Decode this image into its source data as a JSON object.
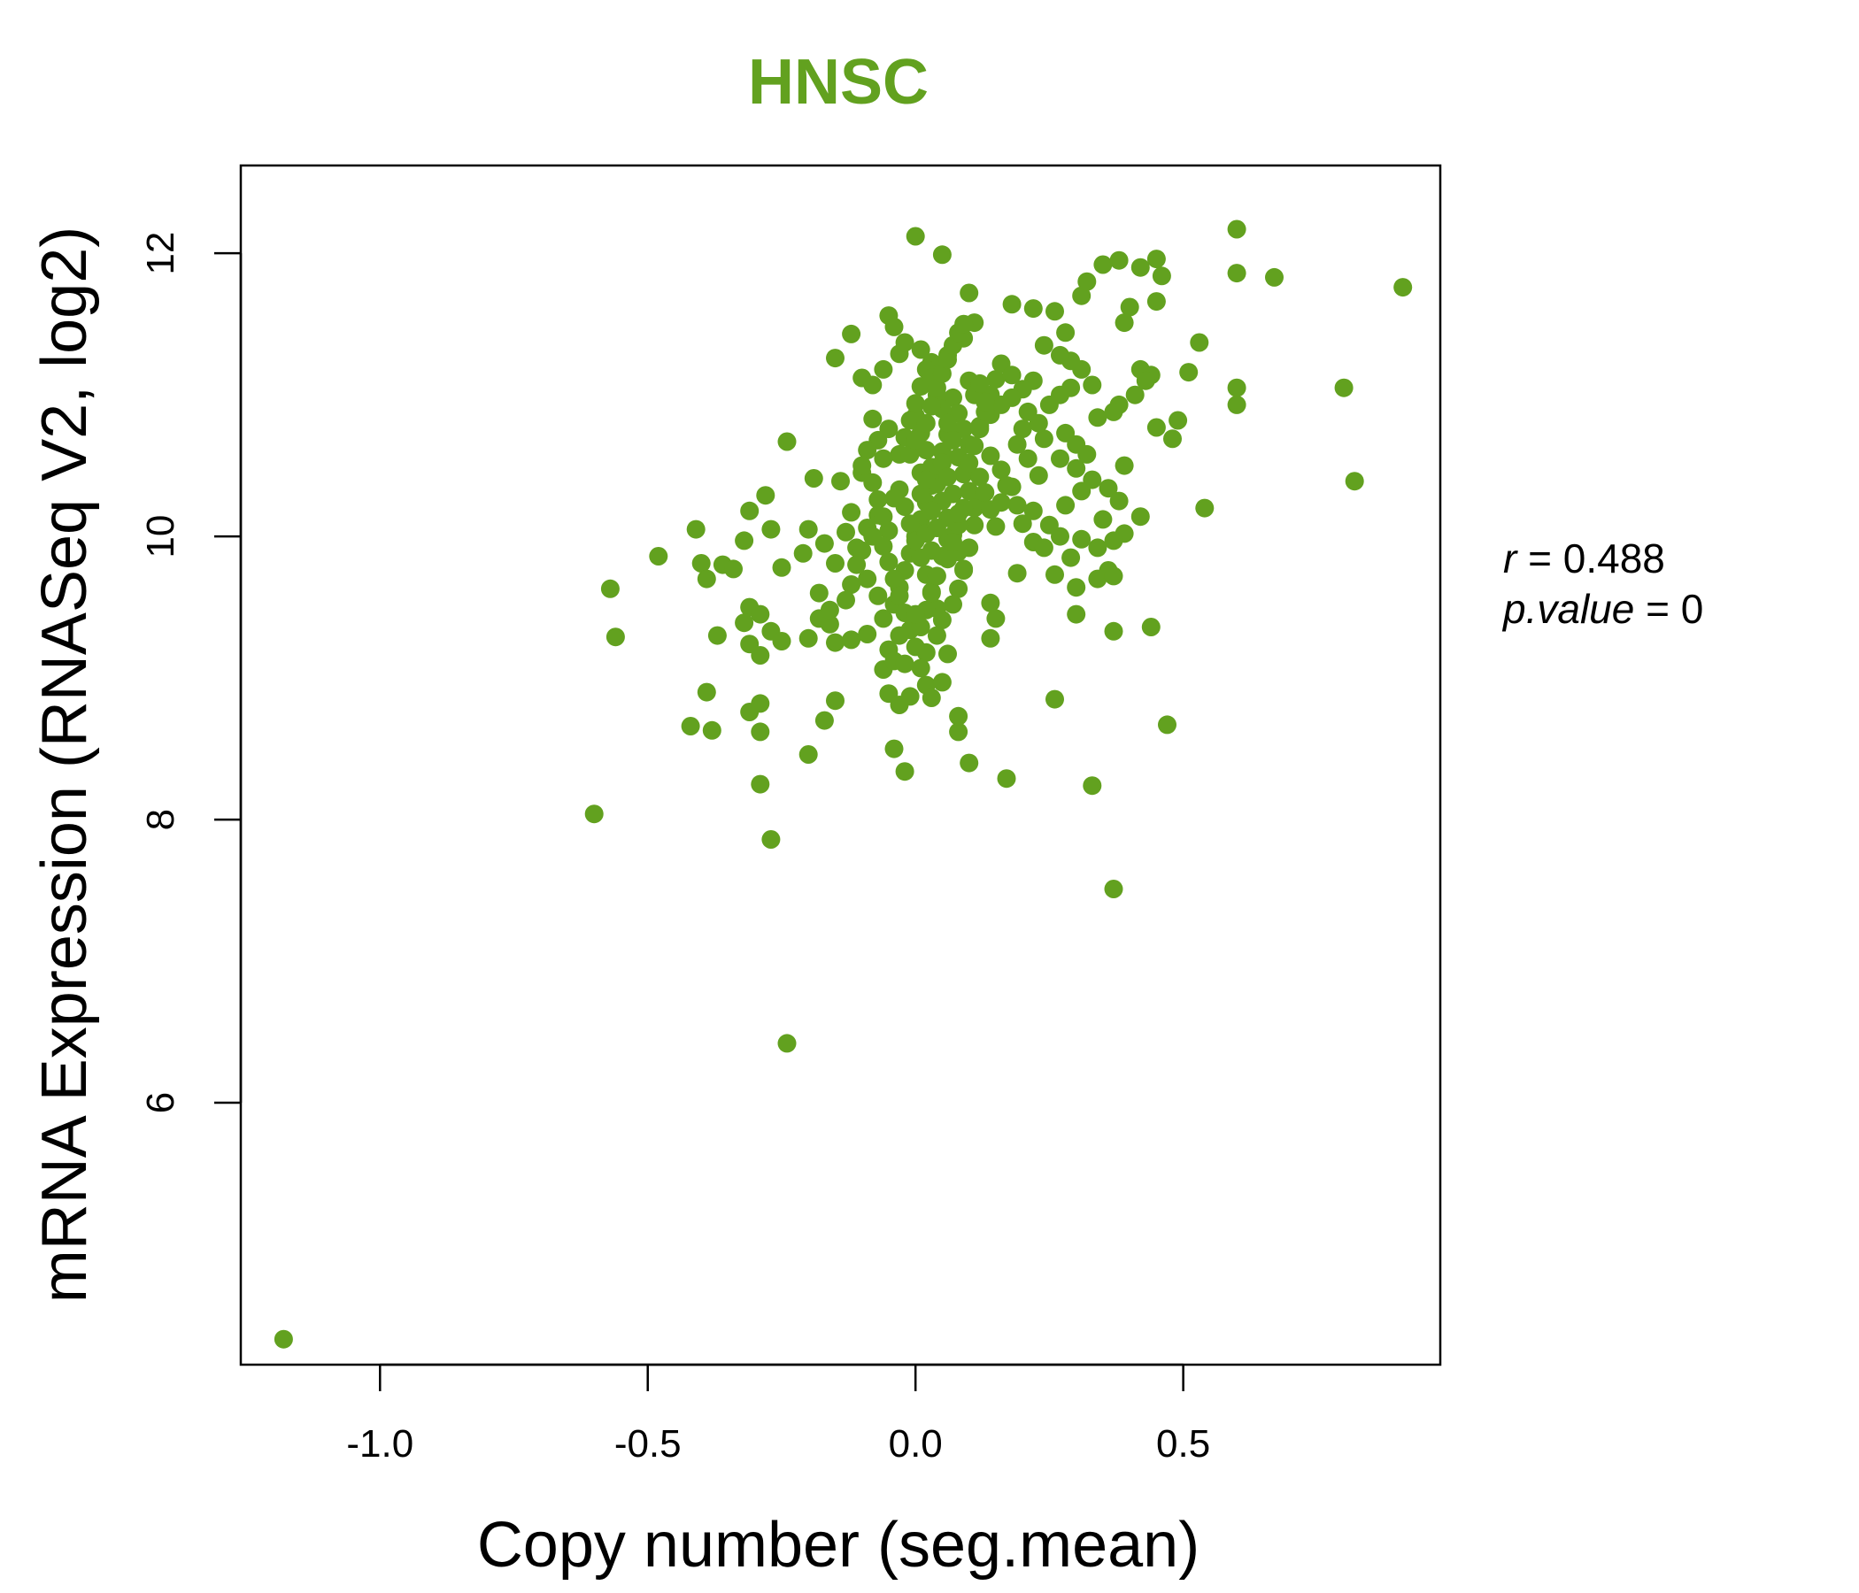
{
  "colors": {
    "accent": "#62A11F",
    "axis": "#000000",
    "background": "#FFFFFF"
  },
  "chart_data": {
    "type": "scatter",
    "title": "HNSC",
    "xlabel": "Copy number (seg.mean)",
    "ylabel": "mRNA Expression (RNASeq V2, log2)",
    "xlim": [
      -1.26,
      0.98
    ],
    "ylim": [
      4.15,
      12.62
    ],
    "xticks": [
      -1.0,
      -0.5,
      0.0,
      0.5
    ],
    "xtick_labels": [
      "-1.0",
      "-0.5",
      "0.0",
      "0.5"
    ],
    "yticks": [
      6,
      8,
      10,
      12
    ],
    "ytick_labels": [
      "6",
      "8",
      "10",
      "12"
    ],
    "grid": false,
    "stats": {
      "r_symbol": "r",
      "r_value": "0.488",
      "p_symbol": "p.value",
      "p_value": "0"
    },
    "points": [
      [
        -1.18,
        4.33
      ],
      [
        -0.6,
        8.04
      ],
      [
        -0.24,
        6.42
      ],
      [
        0.37,
        7.51
      ],
      [
        0.33,
        8.24
      ],
      [
        -0.29,
        8.25
      ],
      [
        -0.27,
        7.86
      ],
      [
        -0.2,
        8.46
      ],
      [
        -0.42,
        8.66
      ],
      [
        -0.38,
        8.63
      ],
      [
        -0.29,
        8.62
      ],
      [
        -0.31,
        8.76
      ],
      [
        -0.29,
        8.82
      ],
      [
        -0.17,
        8.7
      ],
      [
        -0.15,
        8.84
      ],
      [
        -0.04,
        8.5
      ],
      [
        -0.02,
        8.34
      ],
      [
        0.08,
        8.62
      ],
      [
        0.08,
        8.73
      ],
      [
        0.1,
        8.4
      ],
      [
        0.17,
        8.29
      ],
      [
        0.26,
        8.85
      ],
      [
        0.47,
        8.67
      ],
      [
        0.44,
        9.36
      ],
      [
        0.37,
        9.33
      ],
      [
        -0.57,
        9.63
      ],
      [
        -0.56,
        9.29
      ],
      [
        -0.48,
        9.86
      ],
      [
        -0.41,
        10.05
      ],
      [
        -0.4,
        9.81
      ],
      [
        -0.39,
        9.7
      ],
      [
        -0.36,
        9.8
      ],
      [
        -0.34,
        9.77
      ],
      [
        -0.32,
        9.97
      ],
      [
        -0.31,
        10.18
      ],
      [
        -0.28,
        10.29
      ],
      [
        -0.27,
        10.05
      ],
      [
        -0.25,
        9.78
      ],
      [
        -0.24,
        10.67
      ],
      [
        -0.21,
        9.88
      ],
      [
        -0.2,
        10.05
      ],
      [
        -0.19,
        10.41
      ],
      [
        -0.17,
        9.95
      ],
      [
        -0.15,
        9.81
      ],
      [
        -0.14,
        10.39
      ],
      [
        -0.13,
        10.03
      ],
      [
        -0.12,
        10.17
      ],
      [
        -0.11,
        9.92
      ],
      [
        -0.1,
        10.45
      ],
      [
        -0.09,
        10.06
      ],
      [
        -0.31,
        9.5
      ],
      [
        -0.29,
        9.45
      ],
      [
        -0.27,
        9.33
      ],
      [
        -0.25,
        9.26
      ],
      [
        -0.32,
        9.39
      ],
      [
        -0.31,
        9.24
      ],
      [
        -0.29,
        9.16
      ],
      [
        -0.37,
        9.3
      ],
      [
        -0.39,
        8.9
      ],
      [
        -0.2,
        9.28
      ],
      [
        -0.18,
        9.42
      ],
      [
        -0.16,
        9.38
      ],
      [
        -0.15,
        9.25
      ],
      [
        -0.12,
        9.27
      ],
      [
        -0.09,
        9.31
      ],
      [
        -0.06,
        9.06
      ],
      [
        -0.05,
        8.89
      ],
      [
        -0.03,
        8.81
      ],
      [
        -0.01,
        8.87
      ],
      [
        0.02,
        8.95
      ],
      [
        0.05,
        8.97
      ],
      [
        0.06,
        9.17
      ],
      [
        0.03,
        8.86
      ],
      [
        -0.15,
        11.26
      ],
      [
        -0.12,
        11.43
      ],
      [
        -0.1,
        11.12
      ],
      [
        -0.08,
        11.07
      ],
      [
        -0.06,
        11.18
      ],
      [
        -0.05,
        11.56
      ],
      [
        -0.04,
        11.48
      ],
      [
        -0.03,
        11.29
      ],
      [
        -0.02,
        11.37
      ],
      [
        0.0,
        12.12
      ],
      [
        0.05,
        11.99
      ],
      [
        0.1,
        11.72
      ],
      [
        0.11,
        11.51
      ],
      [
        0.09,
        11.4
      ],
      [
        0.06,
        11.28
      ],
      [
        0.03,
        11.23
      ],
      [
        0.01,
        11.32
      ],
      [
        0.18,
        11.64
      ],
      [
        0.22,
        11.61
      ],
      [
        0.26,
        11.59
      ],
      [
        0.28,
        11.44
      ],
      [
        0.31,
        11.7
      ],
      [
        0.32,
        11.8
      ],
      [
        0.35,
        11.92
      ],
      [
        0.38,
        11.95
      ],
      [
        0.42,
        11.9
      ],
      [
        0.45,
        11.96
      ],
      [
        0.46,
        11.84
      ],
      [
        0.45,
        11.66
      ],
      [
        0.4,
        11.62
      ],
      [
        0.39,
        11.51
      ],
      [
        0.6,
        12.17
      ],
      [
        0.6,
        11.86
      ],
      [
        0.67,
        11.83
      ],
      [
        0.91,
        11.76
      ],
      [
        0.53,
        11.37
      ],
      [
        0.51,
        11.16
      ],
      [
        0.6,
        11.05
      ],
      [
        0.6,
        10.93
      ],
      [
        0.8,
        11.05
      ],
      [
        0.82,
        10.39
      ],
      [
        0.54,
        10.2
      ],
      [
        0.49,
        10.82
      ],
      [
        0.48,
        10.69
      ],
      [
        0.45,
        10.77
      ],
      [
        0.42,
        11.18
      ],
      [
        0.44,
        11.14
      ],
      [
        0.43,
        11.1
      ],
      [
        0.41,
        11.0
      ],
      [
        0.38,
        10.93
      ],
      [
        0.37,
        10.88
      ],
      [
        0.34,
        10.84
      ],
      [
        0.33,
        11.07
      ],
      [
        0.31,
        11.18
      ],
      [
        0.29,
        11.24
      ],
      [
        0.27,
        11.28
      ],
      [
        0.24,
        11.35
      ],
      [
        0.22,
        11.1
      ],
      [
        0.2,
        11.04
      ],
      [
        0.18,
        10.98
      ],
      [
        0.16,
        10.93
      ],
      [
        0.14,
        10.86
      ],
      [
        0.12,
        10.78
      ],
      [
        0.24,
        10.69
      ],
      [
        0.27,
        10.55
      ],
      [
        0.3,
        10.48
      ],
      [
        0.33,
        10.4
      ],
      [
        0.36,
        10.34
      ],
      [
        0.38,
        10.25
      ],
      [
        0.42,
        10.14
      ],
      [
        0.39,
        10.02
      ],
      [
        0.37,
        9.97
      ],
      [
        0.34,
        9.92
      ],
      [
        0.31,
        9.98
      ],
      [
        0.29,
        9.85
      ],
      [
        0.26,
        9.73
      ],
      [
        0.22,
        9.96
      ],
      [
        0.2,
        10.09
      ],
      [
        0.19,
        10.22
      ],
      [
        0.18,
        10.35
      ],
      [
        0.16,
        10.47
      ],
      [
        0.14,
        10.57
      ],
      [
        0.12,
        10.24
      ],
      [
        0.11,
        10.08
      ],
      [
        0.1,
        9.92
      ],
      [
        0.09,
        9.76
      ],
      [
        0.08,
        9.63
      ],
      [
        0.07,
        9.52
      ],
      [
        0.05,
        9.41
      ],
      [
        0.04,
        9.3
      ],
      [
        0.02,
        9.18
      ],
      [
        0.01,
        9.07
      ],
      [
        0.14,
        9.53
      ],
      [
        0.15,
        9.42
      ],
      [
        0.14,
        9.28
      ],
      [
        0.19,
        9.74
      ],
      [
        0.24,
        9.92
      ],
      [
        0.3,
        9.45
      ],
      [
        0.34,
        9.7
      ],
      [
        0.36,
        9.76
      ],
      [
        0.37,
        9.72
      ],
      [
        0.3,
        9.64
      ],
      [
        0.07,
        10.98
      ],
      [
        0.08,
        10.87
      ],
      [
        0.09,
        10.76
      ],
      [
        0.1,
        10.65
      ],
      [
        0.06,
        10.72
      ],
      [
        0.05,
        10.6
      ],
      [
        0.04,
        10.48
      ],
      [
        0.03,
        10.36
      ],
      [
        0.02,
        10.24
      ],
      [
        0.01,
        10.12
      ],
      [
        0.0,
        10.0
      ],
      [
        -0.01,
        9.88
      ],
      [
        -0.02,
        9.76
      ],
      [
        -0.03,
        9.64
      ],
      [
        -0.04,
        9.52
      ],
      [
        0.0,
        10.85
      ],
      [
        0.01,
        10.73
      ],
      [
        0.02,
        10.61
      ],
      [
        0.03,
        10.49
      ],
      [
        0.04,
        10.37
      ],
      [
        0.05,
        10.25
      ],
      [
        0.06,
        10.13
      ],
      [
        0.07,
        10.01
      ],
      [
        0.08,
        9.89
      ],
      [
        0.09,
        9.77
      ],
      [
        -0.03,
        10.33
      ],
      [
        -0.02,
        10.21
      ],
      [
        -0.01,
        10.09
      ],
      [
        0.0,
        9.97
      ],
      [
        0.01,
        9.85
      ],
      [
        0.02,
        9.73
      ],
      [
        0.03,
        9.61
      ],
      [
        0.04,
        9.49
      ],
      [
        0.05,
        9.86
      ],
      [
        0.06,
        9.98
      ],
      [
        -0.05,
        10.04
      ],
      [
        -0.06,
        9.93
      ],
      [
        -0.07,
        10.15
      ],
      [
        -0.04,
        10.27
      ],
      [
        -0.03,
        10.58
      ],
      [
        -0.02,
        10.7
      ],
      [
        -0.01,
        10.82
      ],
      [
        0.0,
        10.94
      ],
      [
        0.01,
        11.06
      ],
      [
        0.02,
        11.18
      ],
      [
        0.03,
        11.12
      ],
      [
        0.04,
        11.0
      ],
      [
        0.05,
        10.9
      ],
      [
        0.06,
        10.8
      ],
      [
        0.07,
        10.68
      ],
      [
        0.08,
        10.56
      ],
      [
        0.09,
        10.44
      ],
      [
        0.1,
        10.32
      ],
      [
        0.11,
        10.2
      ],
      [
        0.12,
        10.42
      ],
      [
        0.13,
        10.31
      ],
      [
        0.14,
        10.19
      ],
      [
        0.15,
        10.07
      ],
      [
        0.16,
        10.24
      ],
      [
        0.17,
        10.36
      ],
      [
        -0.06,
        10.55
      ],
      [
        -0.07,
        10.68
      ],
      [
        -0.05,
        10.76
      ],
      [
        -0.08,
        10.83
      ],
      [
        -0.09,
        10.61
      ],
      [
        -0.1,
        10.5
      ],
      [
        -0.08,
        10.38
      ],
      [
        -0.07,
        10.26
      ],
      [
        -0.06,
        10.14
      ],
      [
        -0.05,
        9.82
      ],
      [
        -0.04,
        9.7
      ],
      [
        -0.03,
        9.58
      ],
      [
        -0.02,
        9.46
      ],
      [
        -0.01,
        9.34
      ],
      [
        0.0,
        9.22
      ],
      [
        0.01,
        9.36
      ],
      [
        0.02,
        9.48
      ],
      [
        0.03,
        9.6
      ],
      [
        0.04,
        9.72
      ],
      [
        0.06,
        9.84
      ],
      [
        0.07,
        9.96
      ],
      [
        0.08,
        10.08
      ],
      [
        0.09,
        10.2
      ],
      [
        0.1,
        10.52
      ],
      [
        0.11,
        10.64
      ],
      [
        0.12,
        10.76
      ],
      [
        0.13,
        10.88
      ],
      [
        0.14,
        11.0
      ],
      [
        0.15,
        11.11
      ],
      [
        0.16,
        11.22
      ],
      [
        0.18,
        11.14
      ],
      [
        0.2,
        10.76
      ],
      [
        0.21,
        10.88
      ],
      [
        0.23,
        10.8
      ],
      [
        0.25,
        10.93
      ],
      [
        0.27,
        11.0
      ],
      [
        0.29,
        11.05
      ],
      [
        0.28,
        10.73
      ],
      [
        0.3,
        10.65
      ],
      [
        0.32,
        10.58
      ],
      [
        -0.11,
        9.8
      ],
      [
        -0.12,
        9.66
      ],
      [
        -0.13,
        9.55
      ],
      [
        -0.16,
        9.48
      ],
      [
        -0.18,
        9.6
      ],
      [
        -0.09,
        9.7
      ],
      [
        -0.1,
        9.9
      ],
      [
        -0.08,
        10.0
      ],
      [
        -0.07,
        9.58
      ],
      [
        -0.06,
        9.42
      ],
      [
        -0.05,
        9.2
      ],
      [
        -0.04,
        9.12
      ],
      [
        -0.03,
        9.3
      ],
      [
        -0.02,
        9.1
      ],
      [
        0.0,
        9.45
      ],
      [
        0.03,
        9.9
      ],
      [
        0.02,
        10.02
      ],
      [
        0.01,
        10.45
      ],
      [
        0.02,
        10.8
      ],
      [
        0.03,
        10.92
      ],
      [
        0.04,
        11.05
      ],
      [
        0.05,
        11.15
      ],
      [
        0.06,
        11.25
      ],
      [
        0.07,
        11.35
      ],
      [
        0.08,
        11.44
      ],
      [
        0.09,
        11.5
      ],
      [
        0.1,
        11.1
      ],
      [
        0.11,
        11.0
      ],
      [
        0.12,
        11.08
      ],
      [
        0.13,
        10.95
      ],
      [
        0.19,
        10.65
      ],
      [
        0.21,
        10.55
      ],
      [
        0.23,
        10.43
      ],
      [
        0.22,
        10.18
      ],
      [
        0.25,
        10.08
      ],
      [
        0.27,
        10.0
      ],
      [
        0.28,
        10.22
      ],
      [
        0.31,
        10.32
      ],
      [
        0.35,
        10.12
      ],
      [
        0.39,
        10.5
      ],
      [
        -0.01,
        10.58
      ],
      [
        0.0,
        10.68
      ],
      [
        0.01,
        10.3
      ],
      [
        0.02,
        10.4
      ],
      [
        0.03,
        10.18
      ],
      [
        0.04,
        10.06
      ],
      [
        0.05,
        10.52
      ],
      [
        0.06,
        10.42
      ],
      [
        0.07,
        10.3
      ],
      [
        0.08,
        10.16
      ]
    ]
  }
}
